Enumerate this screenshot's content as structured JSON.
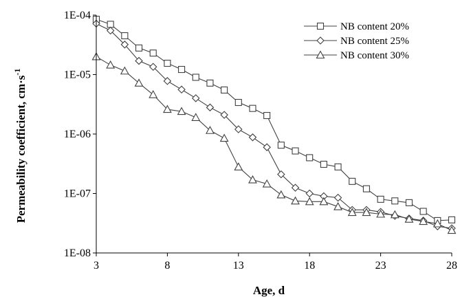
{
  "chart_data": {
    "type": "line",
    "title": "",
    "xlabel": "Age, d",
    "ylabel": {
      "main": "Permeability coefficient, cm·s",
      "superscript": "-1"
    },
    "yscale": "log",
    "xlim": [
      3,
      28
    ],
    "ylim": [
      1e-08,
      0.0001
    ],
    "xticks": [
      3,
      8,
      13,
      18,
      23,
      28
    ],
    "yticks": [
      {
        "value": 0.0001,
        "label": "1E-04"
      },
      {
        "value": 1e-05,
        "label": "1E-05"
      },
      {
        "value": 1e-06,
        "label": "1E-06"
      },
      {
        "value": 1e-07,
        "label": "1E-07"
      },
      {
        "value": 1e-08,
        "label": "1E-08"
      }
    ],
    "grid": false,
    "legend_position": "top-right",
    "x": [
      3,
      4,
      5,
      6,
      7,
      8,
      9,
      10,
      11,
      12,
      13,
      14,
      15,
      16,
      17,
      18,
      19,
      20,
      21,
      22,
      23,
      24,
      25,
      26,
      27,
      28
    ],
    "series": [
      {
        "name": "NB content 20%",
        "marker": "square",
        "values": [
          8.5e-05,
          7e-05,
          4.5e-05,
          2.8e-05,
          2.3e-05,
          1.55e-05,
          1.22e-05,
          9e-06,
          7.2e-06,
          5.5e-06,
          3.4e-06,
          2.7e-06,
          2.05e-06,
          6.5e-07,
          5.2e-07,
          4e-07,
          3.1e-07,
          2.8e-07,
          1.6e-07,
          1.2e-07,
          8e-08,
          7.5e-08,
          7e-08,
          5e-08,
          3.5e-08,
          3.6e-08
        ]
      },
      {
        "name": "NB content 25%",
        "marker": "diamond",
        "values": [
          7.2e-05,
          5.5e-05,
          3.2e-05,
          1.7e-05,
          1.35e-05,
          7.8e-06,
          5.6e-06,
          4e-06,
          2.8e-06,
          2.1e-06,
          1.2e-06,
          8.8e-07,
          6e-07,
          2.1e-07,
          1.25e-07,
          1e-07,
          9e-08,
          8.5e-08,
          5.3e-08,
          5.3e-08,
          4.9e-08,
          4.2e-08,
          3.8e-08,
          3.5e-08,
          2.8e-08,
          2.6e-08
        ]
      },
      {
        "name": "NB content 30%",
        "marker": "triangle",
        "values": [
          2e-05,
          1.45e-05,
          1.15e-05,
          7.2e-06,
          4.6e-06,
          2.6e-06,
          2.4e-06,
          1.9e-06,
          1.15e-06,
          8.5e-07,
          2.8e-07,
          1.7e-07,
          1.45e-07,
          9.5e-08,
          7.5e-08,
          7.3e-08,
          7.3e-08,
          6e-08,
          4.8e-08,
          4.8e-08,
          4.5e-08,
          4.4e-08,
          3.7e-08,
          3.4e-08,
          3.1e-08,
          2.4e-08
        ]
      }
    ]
  }
}
